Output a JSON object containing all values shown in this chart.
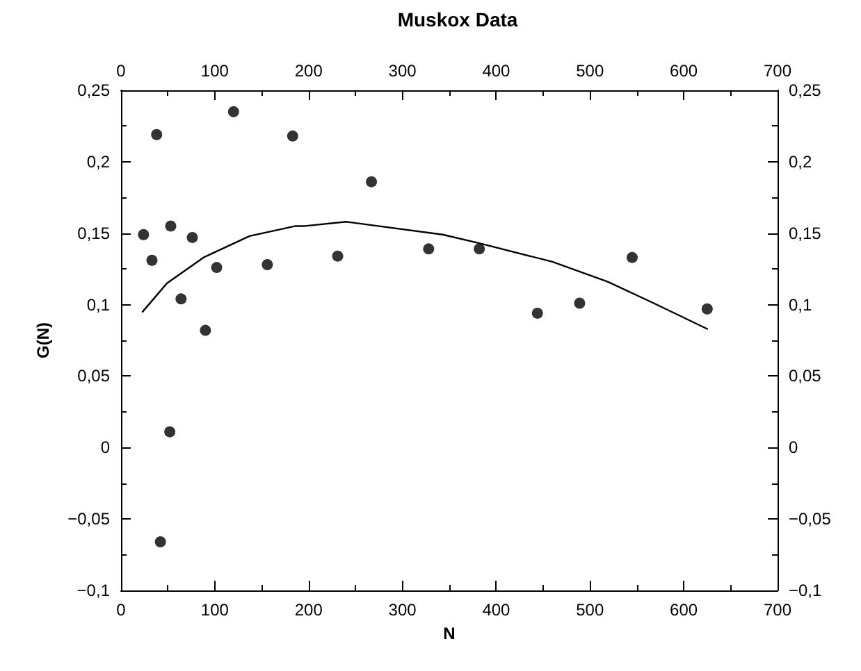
{
  "chart_data": {
    "type": "scatter",
    "title": "Muskox Data",
    "xlabel": "N",
    "ylabel": "G(N)",
    "xlim": [
      0,
      700
    ],
    "xticks": [
      0,
      100,
      200,
      300,
      400,
      500,
      600,
      700
    ],
    "x2lim": [
      0,
      700
    ],
    "x2ticks": [
      0,
      100,
      200,
      300,
      400,
      500,
      600,
      700
    ],
    "ylim": [
      -0.1,
      0.25
    ],
    "yticks": [
      {
        "value": -0.1,
        "label": "−0,1"
      },
      {
        "value": -0.05,
        "label": "−0,05"
      },
      {
        "value": 0,
        "label": "0"
      },
      {
        "value": 0.05,
        "label": "0,05"
      },
      {
        "value": 0.1,
        "label": "0,1"
      },
      {
        "value": 0.15,
        "label": "0,15"
      },
      {
        "value": 0.2,
        "label": "0,2"
      },
      {
        "value": 0.25,
        "label": "0,25"
      }
    ],
    "y2lim": [
      -0.1,
      0.25
    ],
    "y2ticks": [
      {
        "value": -0.1,
        "label": "−0,1"
      },
      {
        "value": -0.05,
        "label": "−0,05"
      },
      {
        "value": 0,
        "label": "0"
      },
      {
        "value": 0.05,
        "label": "0,05"
      },
      {
        "value": 0.1,
        "label": "0,1"
      },
      {
        "value": 0.15,
        "label": "0,15"
      },
      {
        "value": 0.2,
        "label": "0,2"
      },
      {
        "value": 0.25,
        "label": "0,25"
      }
    ],
    "grid": false,
    "series": [
      {
        "color": "#000000",
        "marker": "circle",
        "x": [
          24,
          33,
          38,
          53,
          64,
          76,
          90,
          102,
          120,
          156,
          183,
          231,
          267,
          328,
          382,
          444,
          489,
          545,
          625,
          52,
          42
        ],
        "values": [
          0.149,
          0.131,
          0.219,
          0.155,
          0.104,
          0.147,
          0.082,
          0.126,
          0.235,
          0.128,
          0.218,
          0.134,
          0.186,
          0.139,
          0.139,
          0.094,
          0.101,
          0.133,
          0.097,
          0.011,
          -0.066
        ]
      },
      {
        "type": "line",
        "color": "#000000",
        "marker": "none",
        "line_style": "solid",
        "x": [
          23,
          49,
          88,
          137,
          186,
          196,
          240,
          343,
          382,
          460,
          519,
          568,
          625
        ],
        "values": [
          0.095,
          0.115,
          0.133,
          0.148,
          0.155,
          0.155,
          0.158,
          0.149,
          0.143,
          0.13,
          0.116,
          0.101,
          0.083
        ]
      }
    ]
  }
}
